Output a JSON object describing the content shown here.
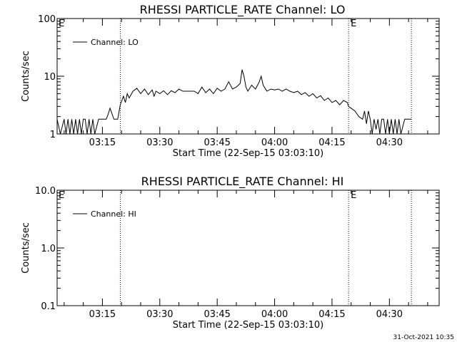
{
  "timestamp": "31-Oct-2021 10:35",
  "chart_data": [
    {
      "type": "line",
      "title": "RHESSI PARTICLE_RATE Channel: LO",
      "xlabel": "Start Time (22-Sep-15 03:03:10)",
      "ylabel": "Counts/sec",
      "yscale": "log",
      "ylim": [
        1,
        100
      ],
      "xlim": [
        "03:03:10",
        "04:43:00"
      ],
      "xticks": [
        "03:15",
        "03:30",
        "03:45",
        "04:00",
        "04:15",
        "04:30"
      ],
      "yticks": [
        "1",
        "10",
        "100"
      ],
      "legend": {
        "entries": [
          "Channel: LO"
        ],
        "position": "top-left"
      },
      "markers": {
        "label": "E",
        "times": [
          "03:19:40",
          "04:19:20",
          "04:35:45"
        ]
      },
      "series": [
        {
          "name": "Channel: LO",
          "x": [
            "03:03:10",
            "03:04:00",
            "03:05:00",
            "03:05:30",
            "03:06:00",
            "03:06:30",
            "03:07:00",
            "03:07:30",
            "03:08:00",
            "03:08:30",
            "03:09:00",
            "03:09:30",
            "03:10:00",
            "03:10:30",
            "03:11:00",
            "03:11:30",
            "03:12:00",
            "03:12:30",
            "03:13:00",
            "03:14:00",
            "03:15:00",
            "03:16:00",
            "03:16:30",
            "03:17:00",
            "03:18:00",
            "03:19:00",
            "03:19:40",
            "03:20:30",
            "03:21:00",
            "03:21:30",
            "03:22:00",
            "03:23:00",
            "03:24:00",
            "03:25:00",
            "03:26:00",
            "03:27:00",
            "03:28:00",
            "03:28:30",
            "03:29:00",
            "03:30:00",
            "03:31:00",
            "03:32:00",
            "03:33:00",
            "03:34:00",
            "03:35:00",
            "03:36:00",
            "03:37:00",
            "03:38:00",
            "03:39:00",
            "03:40:00",
            "03:41:00",
            "03:42:00",
            "03:43:00",
            "03:44:00",
            "03:45:00",
            "03:46:00",
            "03:47:00",
            "03:48:00",
            "03:49:00",
            "03:50:00",
            "03:51:00",
            "03:51:30",
            "03:52:00",
            "03:52:30",
            "03:53:00",
            "03:54:00",
            "03:55:00",
            "03:56:00",
            "03:56:30",
            "03:57:00",
            "03:58:00",
            "03:59:00",
            "04:00:00",
            "04:01:00",
            "04:02:00",
            "04:03:00",
            "04:04:00",
            "04:05:00",
            "04:06:00",
            "04:07:00",
            "04:08:00",
            "04:09:00",
            "04:10:00",
            "04:11:00",
            "04:12:00",
            "04:13:00",
            "04:14:00",
            "04:15:00",
            "04:16:00",
            "04:17:00",
            "04:18:00",
            "04:19:00",
            "04:19:20",
            "04:20:00",
            "04:21:00",
            "04:22:00",
            "04:23:00",
            "04:23:30",
            "04:24:00",
            "04:24:30",
            "04:25:00",
            "04:25:30",
            "04:26:00",
            "04:26:30",
            "04:27:00",
            "04:27:30",
            "04:28:00",
            "04:28:30",
            "04:29:00",
            "04:29:30",
            "04:30:00",
            "04:30:30",
            "04:31:00",
            "04:31:30",
            "04:32:00",
            "04:32:30",
            "04:33:00",
            "04:34:00",
            "04:35:00",
            "04:35:45"
          ],
          "values": [
            1.8,
            1.0,
            1.8,
            1.0,
            1.8,
            1.0,
            1.8,
            1.0,
            1.8,
            1.0,
            1.8,
            1.0,
            1.8,
            1.8,
            1.0,
            1.8,
            1.0,
            1.8,
            1.0,
            1.8,
            1.8,
            1.8,
            2.2,
            2.8,
            1.8,
            1.8,
            3.2,
            4.5,
            3.5,
            5.0,
            4.2,
            5.5,
            6.2,
            5.0,
            6.0,
            4.8,
            5.8,
            4.5,
            5.5,
            5.0,
            5.6,
            4.8,
            5.6,
            5.2,
            6.0,
            5.5,
            5.5,
            5.5,
            5.5,
            5.0,
            6.5,
            5.2,
            6.0,
            5.0,
            6.2,
            5.5,
            6.0,
            8.0,
            6.0,
            6.5,
            7.5,
            13.0,
            10.0,
            6.5,
            5.5,
            7.0,
            6.0,
            8.0,
            10.0,
            7.0,
            5.5,
            6.0,
            5.8,
            6.0,
            5.5,
            6.0,
            5.5,
            5.2,
            5.5,
            4.8,
            5.2,
            4.5,
            5.0,
            4.2,
            4.6,
            3.8,
            4.2,
            3.5,
            3.8,
            3.2,
            3.8,
            3.5,
            3.0,
            2.8,
            2.5,
            2.0,
            1.8,
            2.5,
            1.5,
            2.5,
            1.8,
            1.0,
            1.8,
            1.2,
            1.8,
            1.0,
            1.8,
            1.8,
            1.0,
            1.8,
            1.0,
            1.8,
            1.0,
            1.8,
            1.0,
            1.8,
            1.0,
            1.8,
            1.8,
            1.8
          ]
        }
      ]
    },
    {
      "type": "line",
      "title": "RHESSI PARTICLE_RATE Channel: HI",
      "xlabel": "Start Time (22-Sep-15 03:03:10)",
      "ylabel": "Counts/sec",
      "yscale": "log",
      "ylim": [
        0.1,
        10
      ],
      "xlim": [
        "03:03:10",
        "04:43:00"
      ],
      "xticks": [
        "03:15",
        "03:30",
        "03:45",
        "04:00",
        "04:15",
        "04:30"
      ],
      "yticks": [
        "0.1",
        "1.0",
        "10.0"
      ],
      "legend": {
        "entries": [
          "Channel: HI"
        ],
        "position": "top-left"
      },
      "markers": {
        "label": "E",
        "times": [
          "03:19:40",
          "04:19:20",
          "04:35:45"
        ]
      },
      "series": [
        {
          "name": "Channel: HI",
          "x": [],
          "values": []
        }
      ]
    }
  ]
}
